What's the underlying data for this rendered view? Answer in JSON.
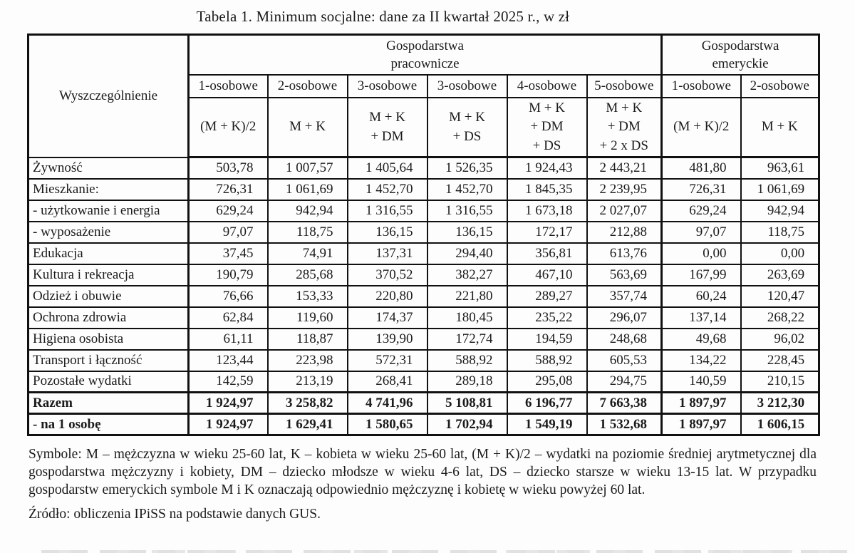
{
  "title": "Tabela 1. Minimum socjalne: dane za II kwartał 2025 r., w zł",
  "table": {
    "row_header_label": "Wyszczególnienie",
    "groups": [
      {
        "label": "Gospodarstwa\npracownicze"
      },
      {
        "label": "Gospodarstwa\nemeryckie"
      }
    ],
    "columns": [
      "1-osobowe",
      "2-osobowe",
      "3-osobowe",
      "3-osobowe",
      "4-osobowe",
      "5-osobowe",
      "1-osobowe",
      "2-osobowe"
    ],
    "symbols": [
      "(M + K)/2",
      "M + K",
      "M + K\n+ DM",
      "M + K\n+ DS",
      "M + K\n+ DM\n+ DS",
      "M + K\n+ DM\n+ 2 x DS",
      "(M + K)/2",
      "M + K"
    ],
    "rows": [
      {
        "label": "Żywność",
        "style": "normal",
        "values": [
          "503,78",
          "1 007,57",
          "1 405,64",
          "1 526,35",
          "1 924,43",
          "2 443,21",
          "481,80",
          "963,61"
        ]
      },
      {
        "label": "Mieszkanie:",
        "style": "normal",
        "values": [
          "726,31",
          "1 061,69",
          "1 452,70",
          "1 452,70",
          "1 845,35",
          "2 239,95",
          "726,31",
          "1 061,69"
        ]
      },
      {
        "label": "- użytkowanie i energia",
        "style": "sub",
        "values": [
          "629,24",
          "942,94",
          "1 316,55",
          "1 316,55",
          "1 673,18",
          "2 027,07",
          "629,24",
          "942,94"
        ]
      },
      {
        "label": "- wyposażenie",
        "style": "sub",
        "values": [
          "97,07",
          "118,75",
          "136,15",
          "136,15",
          "172,17",
          "212,88",
          "97,07",
          "118,75"
        ]
      },
      {
        "label": "Edukacja",
        "style": "normal",
        "values": [
          "37,45",
          "74,91",
          "137,31",
          "294,40",
          "356,81",
          "613,76",
          "0,00",
          "0,00"
        ]
      },
      {
        "label": "Kultura i rekreacja",
        "style": "normal",
        "values": [
          "190,79",
          "285,68",
          "370,52",
          "382,27",
          "467,10",
          "563,69",
          "167,99",
          "263,69"
        ]
      },
      {
        "label": "Odzież i obuwie",
        "style": "normal",
        "values": [
          "76,66",
          "153,33",
          "220,80",
          "221,80",
          "289,27",
          "357,74",
          "60,24",
          "120,47"
        ]
      },
      {
        "label": "Ochrona zdrowia",
        "style": "normal",
        "values": [
          "62,84",
          "119,60",
          "174,37",
          "180,45",
          "235,22",
          "296,07",
          "137,14",
          "268,22"
        ]
      },
      {
        "label": "Higiena osobista",
        "style": "normal",
        "values": [
          "61,11",
          "118,87",
          "139,90",
          "172,74",
          "194,59",
          "248,68",
          "49,68",
          "96,02"
        ]
      },
      {
        "label": "Transport i łączność",
        "style": "normal",
        "values": [
          "123,44",
          "223,98",
          "572,31",
          "588,92",
          "588,92",
          "605,53",
          "134,22",
          "228,45"
        ]
      },
      {
        "label": "Pozostałe wydatki",
        "style": "normal",
        "values": [
          "142,59",
          "213,19",
          "268,41",
          "289,18",
          "295,08",
          "294,75",
          "140,59",
          "210,15"
        ]
      },
      {
        "label": "Razem",
        "style": "total",
        "values": [
          "1 924,97",
          "3 258,82",
          "4 741,96",
          "5 108,81",
          "6 196,77",
          "7 663,38",
          "1 897,97",
          "3 212,30"
        ]
      },
      {
        "label": "- na 1 osobę",
        "style": "total",
        "values": [
          "1 924,97",
          "1 629,41",
          "1 580,65",
          "1 702,94",
          "1 549,19",
          "1 532,68",
          "1 897,97",
          "1 606,15"
        ]
      }
    ]
  },
  "footnotes": {
    "symbols": "Symbole: M – mężczyzna w wieku 25-60 lat, K – kobieta w wieku 25-60 lat, (M + K)/2 – wydatki na poziomie średniej arytmetycznej dla gospodarstwa mężczyzny i kobiety, DM – dziecko młodsze w wieku 4-6 lat, DS – dziecko starsze w wieku 13-15 lat. W przypadku gospodarstw emeryckich symbole M i K oznaczają odpowiednio mężczyznę i kobietę w wieku powyżej 60 lat.",
    "source": "Źródło: obliczenia IPiSS na podstawie danych GUS."
  }
}
